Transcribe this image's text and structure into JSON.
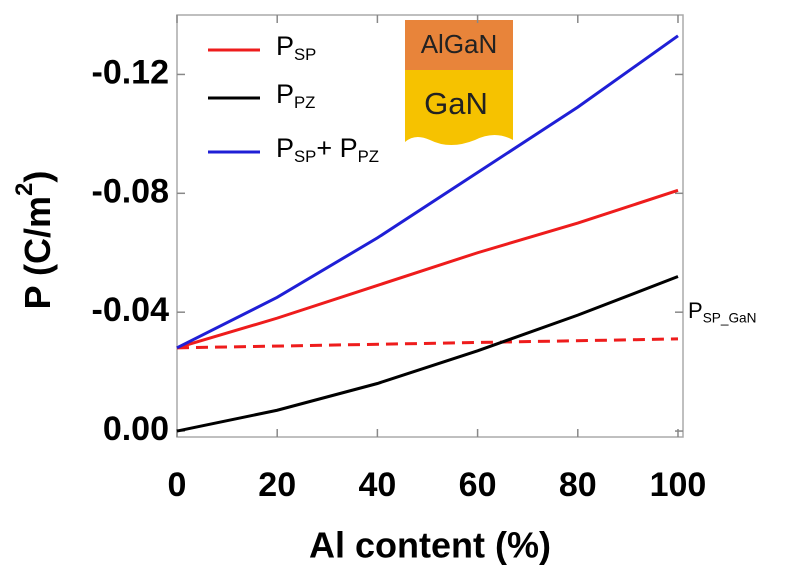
{
  "chart_data": {
    "type": "line",
    "xlabel": "Al content (%)",
    "ylabel": "P (C/m2)",
    "x": [
      0,
      20,
      40,
      60,
      80,
      100
    ],
    "xlim": [
      0,
      101
    ],
    "xticks": [
      0,
      20,
      40,
      60,
      80,
      100
    ],
    "ylim": [
      0.002,
      -0.14
    ],
    "yticks": [
      {
        "value": 0,
        "label": "0.00"
      },
      {
        "value": -0.04,
        "label": "-0.04"
      },
      {
        "value": -0.08,
        "label": "-0.08"
      },
      {
        "value": -0.12,
        "label": "-0.12"
      }
    ],
    "series": [
      {
        "name": "PSP",
        "color": "#ee1c1c",
        "values": [
          -0.028,
          -0.038,
          -0.049,
          -0.06,
          -0.07,
          -0.081
        ]
      },
      {
        "name": "PPZ",
        "color": "#000000",
        "values": [
          0,
          -0.007,
          -0.016,
          -0.027,
          -0.039,
          -0.052
        ]
      },
      {
        "name": "PSP+ PPZ",
        "color": "#1f1fd6",
        "values": [
          -0.028,
          -0.045,
          -0.065,
          -0.087,
          -0.109,
          -0.133
        ]
      }
    ],
    "reference_line": {
      "label": "PSP_GaN",
      "color": "#ee1c1c",
      "x": [
        0,
        100
      ],
      "values": [
        -0.028,
        -0.031
      ]
    },
    "inset": {
      "top_layer": "AlGaN",
      "bottom_layer": "GaN"
    }
  }
}
